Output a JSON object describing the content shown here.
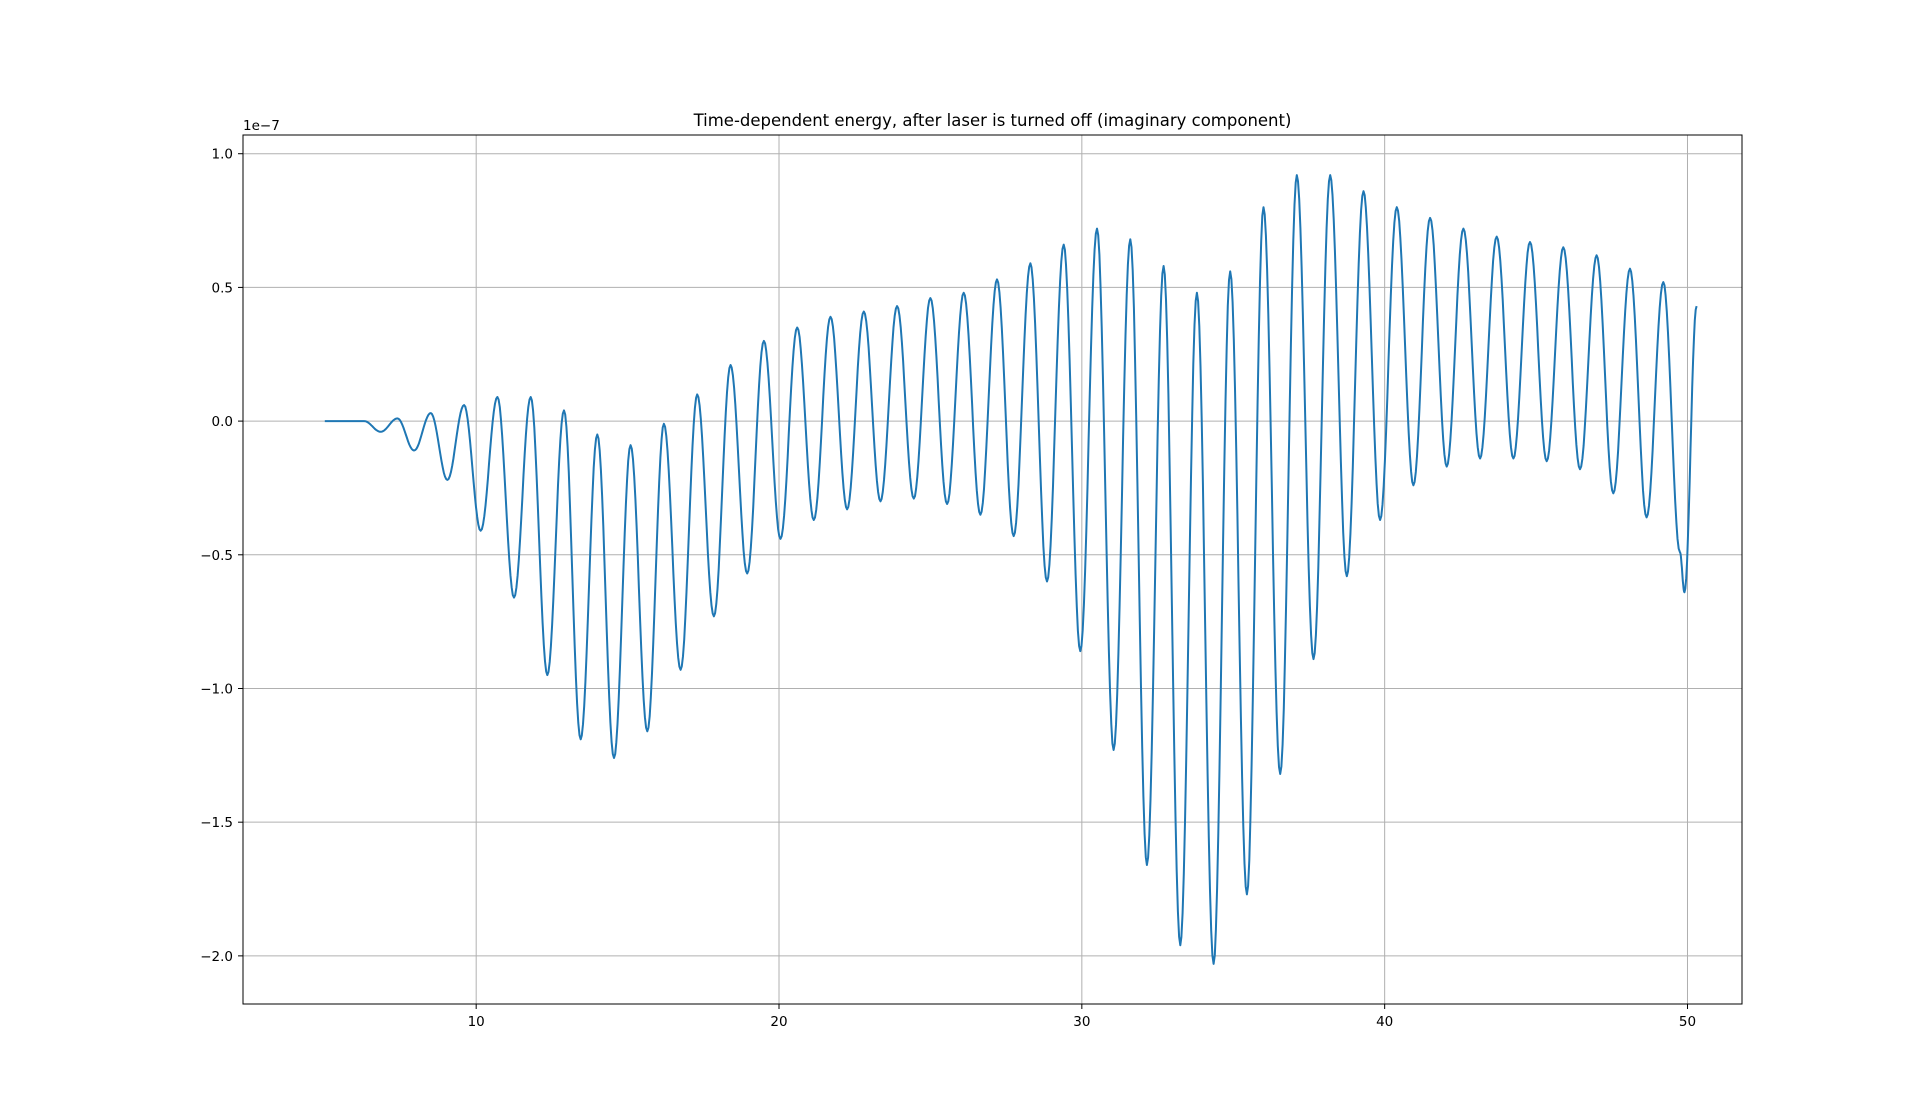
{
  "chart_data": {
    "type": "line",
    "title": "Time-dependent energy, after laser is turned off (imaginary component)",
    "xlabel": "",
    "ylabel": "",
    "y_offset_label": "1e−7",
    "xlim": [
      2.3,
      51.8
    ],
    "ylim": [
      -2.18,
      1.07
    ],
    "x_ticks": [
      10,
      20,
      30,
      40,
      50
    ],
    "x_tick_labels": [
      "10",
      "20",
      "30",
      "40",
      "50"
    ],
    "y_ticks": [
      1.0,
      0.5,
      0.0,
      -0.5,
      -1.0,
      -1.5,
      -2.0
    ],
    "y_tick_labels": [
      "1.0",
      "0.5",
      "0.0",
      "−0.5",
      "−1.0",
      "−1.5",
      "−2.0"
    ],
    "grid": true,
    "line_color": "#1f77b4",
    "series": [
      {
        "x_start": 5.0,
        "period": 1.1,
        "first_peak_x": 6.3,
        "last_x": 49.9,
        "end_y": -0.64,
        "peaks": [
          0.0,
          0.01,
          0.03,
          0.06,
          0.09,
          0.09,
          0.04,
          -0.05,
          -0.09,
          -0.01,
          0.1,
          0.21,
          0.3,
          0.35,
          0.39,
          0.41,
          0.43,
          0.46,
          0.48,
          0.53,
          0.59,
          0.66,
          0.72,
          0.68,
          0.58,
          0.48,
          0.56,
          0.8,
          0.92,
          0.92,
          0.86,
          0.8,
          0.76,
          0.72,
          0.69,
          0.67,
          0.65,
          0.62,
          0.57,
          0.52,
          0.43
        ],
        "troughs": [
          -0.04,
          -0.11,
          -0.22,
          -0.41,
          -0.66,
          -0.95,
          -1.19,
          -1.26,
          -1.16,
          -0.93,
          -0.73,
          -0.57,
          -0.44,
          -0.37,
          -0.33,
          -0.3,
          -0.29,
          -0.31,
          -0.35,
          -0.43,
          -0.6,
          -0.86,
          -1.23,
          -1.66,
          -1.96,
          -2.03,
          -1.77,
          -1.32,
          -0.89,
          -0.58,
          -0.37,
          -0.24,
          -0.17,
          -0.14,
          -0.14,
          -0.15,
          -0.18,
          -0.27,
          -0.36,
          -0.49,
          -0.7
        ]
      }
    ]
  }
}
